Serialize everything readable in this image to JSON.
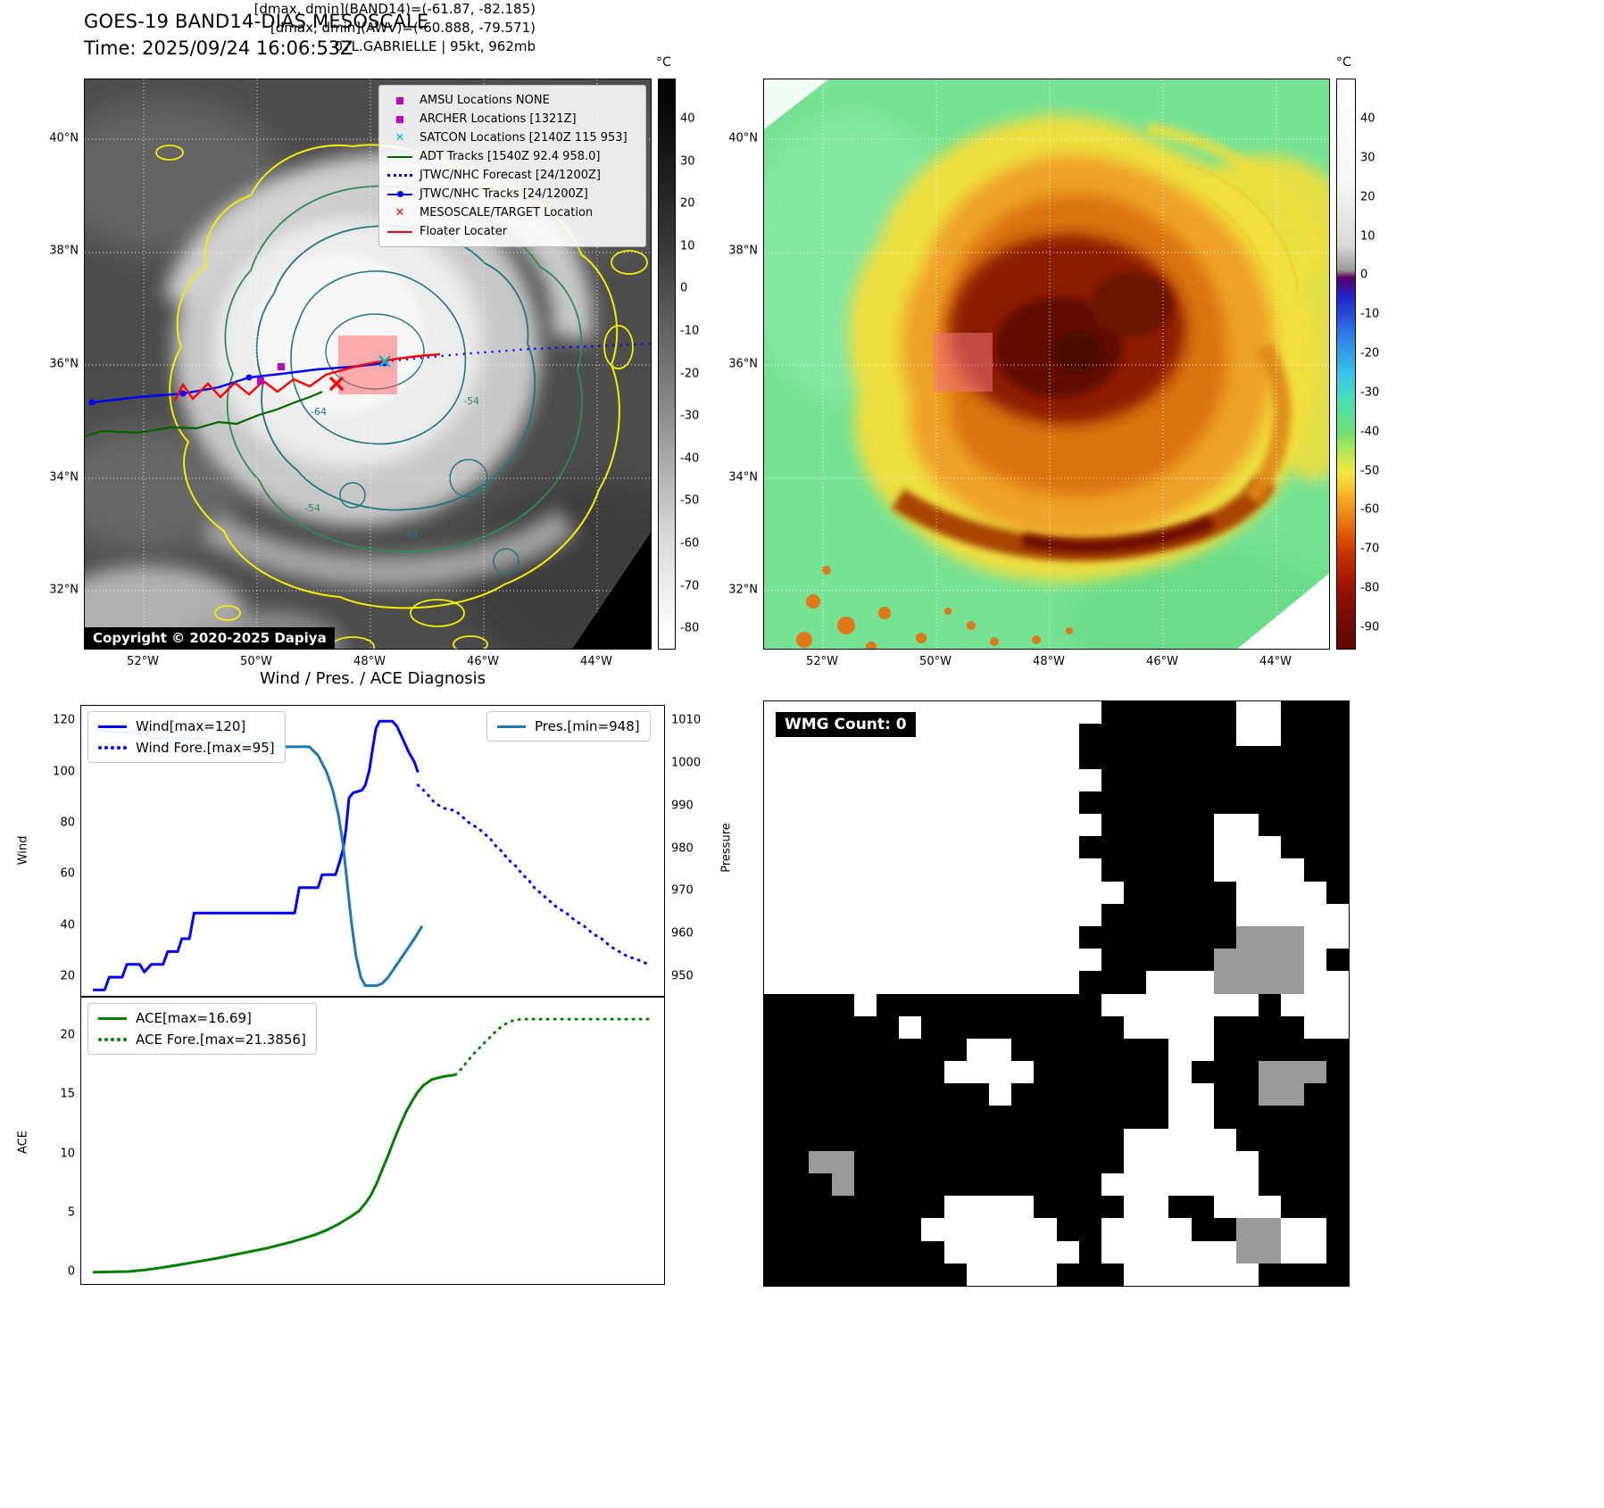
{
  "tl": {
    "title": "GOES-19 BAND14-DIAS MESOSCALE",
    "subtitle": "Time: 2025/09/24 16:06:53Z",
    "copyright": "Copyright © 2020-2025 Dapiya",
    "colorbar": {
      "label": "°C",
      "ticks": [
        "40",
        "30",
        "20",
        "10",
        "0",
        "-10",
        "-20",
        "-30",
        "-40",
        "-50",
        "-60",
        "-70",
        "-80"
      ]
    },
    "lat_ticks": [
      "40°N",
      "38°N",
      "36°N",
      "34°N",
      "32°N"
    ],
    "lon_ticks": [
      "52°W",
      "50°W",
      "48°W",
      "46°W",
      "44°W"
    ],
    "contour_labels": [
      "-64",
      "-54",
      "-64",
      "-54"
    ],
    "legend": [
      {
        "label": "AMSU Locations NONE",
        "color": "#c000c0",
        "marker": "square"
      },
      {
        "label": "ARCHER Locations [1321Z]",
        "color": "#c000c0",
        "marker": "square"
      },
      {
        "label": "SATCON Locations [2140Z 115 953]",
        "color": "#00bfbf",
        "marker": "x"
      },
      {
        "label": "ADT Tracks [1540Z 92.4 958.0]",
        "color": "#006400",
        "marker": "line"
      },
      {
        "label": "JTWC/NHC Forecast [24/1200Z]",
        "color": "#0000ff",
        "marker": "dotted-line"
      },
      {
        "label": "JTWC/NHC Tracks [24/1200Z]",
        "color": "#0000ff",
        "marker": "line-dot"
      },
      {
        "label": "MESOSCALE/TARGET Location",
        "color": "#ff0000",
        "marker": "x"
      },
      {
        "label": "Floater Locater",
        "color": "#ff0000",
        "marker": "line"
      }
    ]
  },
  "tr": {
    "header": {
      "line1": "[dmax, dmin](BAND14)=(-61.87, -82.185)",
      "line2": "[dmax, dmin](AWV)=(-60.888, -79.571)",
      "line3": "07L.GABRIELLE | 95kt, 962mb"
    },
    "colorbar": {
      "label": "°C",
      "ticks": [
        "40",
        "30",
        "20",
        "10",
        "0",
        "-10",
        "-20",
        "-30",
        "-40",
        "-50",
        "-60",
        "-70",
        "-80",
        "-90"
      ]
    },
    "lat_ticks": [
      "40°N",
      "38°N",
      "36°N",
      "34°N",
      "32°N"
    ],
    "lon_ticks": [
      "52°W",
      "50°W",
      "48°W",
      "46°W",
      "44°W"
    ]
  },
  "br": {
    "wmg_label": "WMG Count: 0",
    "grid": [
      "...............######..###",
      "..............#######..###",
      "..............############",
      "...............###########",
      "..............############",
      "...............#####..####",
      "..............######...###",
      "...............#####....##",
      "................#####....#",
      "...............######.....",
      "..............#######ggg..",
      "...............#####gggg.#",
      "..............###...gggg..",
      "####.##########.......#...",
      "######.#########....####..",
      "#########..#######..######",
      "########....######.###ggg#",
      "##########.#######..##gg##",
      "##################..######",
      "################.....#####",
      "##gg############......####",
      "###g###########.......####",
      "########....####..##...###",
      "#######......##....##gg..#",
      "########......#......gg..#",
      "#########....###......####"
    ]
  },
  "chart_data": [
    {
      "type": "line",
      "title": "Wind / Pres. / ACE Diagnosis",
      "xlabel": "",
      "ylabel": "Wind",
      "y2label": "Pressure",
      "xlim": [
        0,
        100
      ],
      "ylim": [
        12,
        126
      ],
      "y2lim": [
        945.2,
        1013.6
      ],
      "yticks": [
        20,
        40,
        60,
        80,
        100,
        120
      ],
      "y2ticks": [
        950,
        960,
        970,
        980,
        990,
        1000,
        1010
      ],
      "xticklabels": [],
      "grid": false,
      "series": [
        {
          "name": "Wind[max=120]",
          "style": "solid",
          "color": "#0000ff",
          "axis": "left",
          "points": [
            [
              2,
              15
            ],
            [
              4,
              15
            ],
            [
              4.8,
              20
            ],
            [
              7,
              20
            ],
            [
              7.8,
              25
            ],
            [
              10,
              25
            ],
            [
              10.8,
              22
            ],
            [
              12,
              25
            ],
            [
              14,
              25
            ],
            [
              14.8,
              30
            ],
            [
              16.5,
              30
            ],
            [
              17.2,
              35
            ],
            [
              18.5,
              35
            ],
            [
              19.3,
              45
            ],
            [
              30,
              45
            ],
            [
              36.5,
              45
            ],
            [
              37.3,
              55
            ],
            [
              40.5,
              55
            ],
            [
              41.2,
              60
            ],
            [
              43.5,
              60
            ],
            [
              44.2,
              65
            ],
            [
              44.8,
              70
            ],
            [
              45.3,
              78
            ],
            [
              45.8,
              90
            ],
            [
              46.5,
              92
            ],
            [
              48,
              93
            ],
            [
              48.6,
              95
            ],
            [
              49.3,
              101
            ],
            [
              49.9,
              110
            ],
            [
              50.4,
              117
            ],
            [
              51,
              120
            ],
            [
              53.2,
              120
            ],
            [
              54,
              118
            ],
            [
              55,
              113
            ],
            [
              56,
              108
            ],
            [
              57,
              104
            ],
            [
              57.6,
              100
            ]
          ]
        },
        {
          "name": "Wind Fore.[max=95]",
          "style": "dotted",
          "color": "#0000ff",
          "axis": "left",
          "points": [
            [
              57.6,
              95
            ],
            [
              59,
              92
            ],
            [
              60.5,
              88
            ],
            [
              62,
              86
            ],
            [
              64,
              85
            ],
            [
              65,
              83
            ],
            [
              66.5,
              80
            ],
            [
              68,
              78
            ],
            [
              69,
              76
            ],
            [
              70,
              74
            ],
            [
              71,
              71
            ],
            [
              72,
              69
            ],
            [
              73,
              66
            ],
            [
              74.5,
              63
            ],
            [
              75.5,
              60
            ],
            [
              76.5,
              58
            ],
            [
              77.5,
              55
            ],
            [
              79,
              52
            ],
            [
              80,
              50
            ],
            [
              81.5,
              47
            ],
            [
              83,
              45
            ],
            [
              84.5,
              42
            ],
            [
              86,
              40
            ],
            [
              87.5,
              37
            ],
            [
              89,
              35
            ],
            [
              90.5,
              32
            ],
            [
              92,
              30
            ],
            [
              93.5,
              28
            ],
            [
              95,
              27
            ],
            [
              97,
              25
            ]
          ]
        },
        {
          "name": "Pres.[min=948]",
          "style": "solid",
          "color": "#1f77b4",
          "axis": "right",
          "points": [
            [
              2,
              1008
            ],
            [
              11,
              1007
            ],
            [
              12,
              1006
            ],
            [
              21,
              1006
            ],
            [
              22,
              1005
            ],
            [
              32,
              1005
            ],
            [
              33,
              1004
            ],
            [
              39,
              1004
            ],
            [
              40.5,
              1002
            ],
            [
              42,
              998
            ],
            [
              43,
              994
            ],
            [
              44,
              988
            ],
            [
              44.8,
              981
            ],
            [
              45.5,
              972
            ],
            [
              46.2,
              963
            ],
            [
              47,
              955
            ],
            [
              47.8,
              950
            ],
            [
              48.6,
              948
            ],
            [
              50.5,
              948
            ],
            [
              51.5,
              948.5
            ],
            [
              52.5,
              950
            ],
            [
              54,
              953
            ],
            [
              55.5,
              956
            ],
            [
              57,
              959
            ],
            [
              58.3,
              962
            ]
          ]
        }
      ]
    },
    {
      "type": "line",
      "title": "",
      "xlabel": "",
      "ylabel": "ACE",
      "xlim": [
        0,
        100
      ],
      "ylim": [
        -1.1,
        23.2
      ],
      "yticks": [
        0,
        5,
        10,
        15,
        20
      ],
      "xticklabels": [],
      "grid": false,
      "series": [
        {
          "name": "ACE[max=16.69]",
          "style": "solid",
          "color": "#008000",
          "axis": "left",
          "points": [
            [
              2,
              0.05
            ],
            [
              8,
              0.1
            ],
            [
              11,
              0.25
            ],
            [
              14,
              0.45
            ],
            [
              17,
              0.7
            ],
            [
              20,
              0.95
            ],
            [
              23,
              1.2
            ],
            [
              26,
              1.5
            ],
            [
              29,
              1.8
            ],
            [
              32,
              2.1
            ],
            [
              34,
              2.35
            ],
            [
              36,
              2.6
            ],
            [
              38,
              2.9
            ],
            [
              40,
              3.2
            ],
            [
              42,
              3.6
            ],
            [
              44,
              4.1
            ],
            [
              46,
              4.7
            ],
            [
              47.5,
              5.2
            ],
            [
              48.5,
              5.8
            ],
            [
              49.5,
              6.5
            ],
            [
              50.5,
              7.5
            ],
            [
              51.5,
              8.7
            ],
            [
              52.5,
              9.9
            ],
            [
              53.5,
              11.2
            ],
            [
              54.5,
              12.4
            ],
            [
              55.5,
              13.5
            ],
            [
              56.5,
              14.4
            ],
            [
              57.5,
              15.2
            ],
            [
              58.5,
              15.8
            ],
            [
              60,
              16.3
            ],
            [
              62,
              16.55
            ],
            [
              64,
              16.69
            ]
          ]
        },
        {
          "name": "ACE Fore.[max=21.3856]",
          "style": "dotted",
          "color": "#008000",
          "axis": "left",
          "points": [
            [
              64,
              16.69
            ],
            [
              65,
              17.2
            ],
            [
              66,
              17.8
            ],
            [
              67,
              18.4
            ],
            [
              68,
              18.9
            ],
            [
              69,
              19.4
            ],
            [
              70,
              19.9
            ],
            [
              71,
              20.4
            ],
            [
              72,
              20.8
            ],
            [
              73,
              21.1
            ],
            [
              74,
              21.3
            ],
            [
              75.5,
              21.39
            ],
            [
              78,
              21.39
            ],
            [
              82,
              21.39
            ],
            [
              86,
              21.39
            ],
            [
              90,
              21.39
            ],
            [
              94,
              21.39
            ],
            [
              97.5,
              21.39
            ]
          ]
        }
      ]
    }
  ]
}
